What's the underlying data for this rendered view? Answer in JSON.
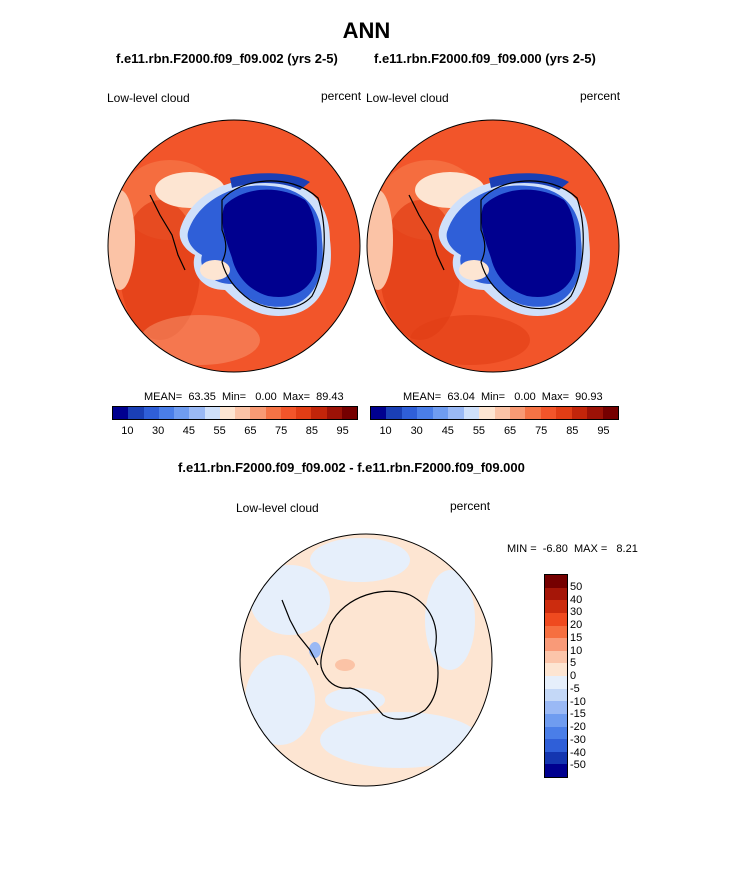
{
  "title": "ANN",
  "panel_left": {
    "case": "f.e11.rbn.F2000.f09_f09.002 (yrs 2-5)",
    "variable": "Low-level cloud",
    "units": "percent",
    "stats": "MEAN=  63.35  Min=   0.00  Max=  89.43"
  },
  "panel_right": {
    "case": "f.e11.rbn.F2000.f09_f09.000 (yrs 2-5)",
    "variable": "Low-level cloud",
    "units": "percent",
    "stats": "MEAN=  63.04  Min=   0.00  Max=  90.93"
  },
  "diff_panel": {
    "title": "f.e11.rbn.F2000.f09_f09.002 - f.e11.rbn.F2000.f09_f09.000",
    "variable": "Low-level cloud",
    "units": "percent",
    "minmax": "MIN =  -6.80  MAX =   8.21"
  },
  "colorbar_main": {
    "colors": [
      "#00008f",
      "#1a3fb5",
      "#2f5fd8",
      "#4a7ee8",
      "#6f9cf0",
      "#9ab9f5",
      "#cfe0fa",
      "#fde5d2",
      "#fbc3a6",
      "#f89a74",
      "#f57345",
      "#f2552a",
      "#e13d15",
      "#c2250a",
      "#9c1206",
      "#750000"
    ],
    "tick_labels": [
      "10",
      "30",
      "45",
      "55",
      "65",
      "75",
      "85",
      "95"
    ]
  },
  "colorbar_diff": {
    "colors": [
      "#750000",
      "#a51608",
      "#cc2c0e",
      "#ef4a1f",
      "#f66f40",
      "#f99a78",
      "#fcc5aa",
      "#fde5d2",
      "#e6effb",
      "#c4d8f7",
      "#9ab9f5",
      "#6f9cf0",
      "#4a7ee8",
      "#2f5fd8",
      "#1436b0",
      "#00008f"
    ],
    "tick_labels": [
      "50",
      "40",
      "30",
      "20",
      "15",
      "10",
      "5",
      "0",
      "-5",
      "-10",
      "-15",
      "-20",
      "-30",
      "-40",
      "-50"
    ]
  }
}
